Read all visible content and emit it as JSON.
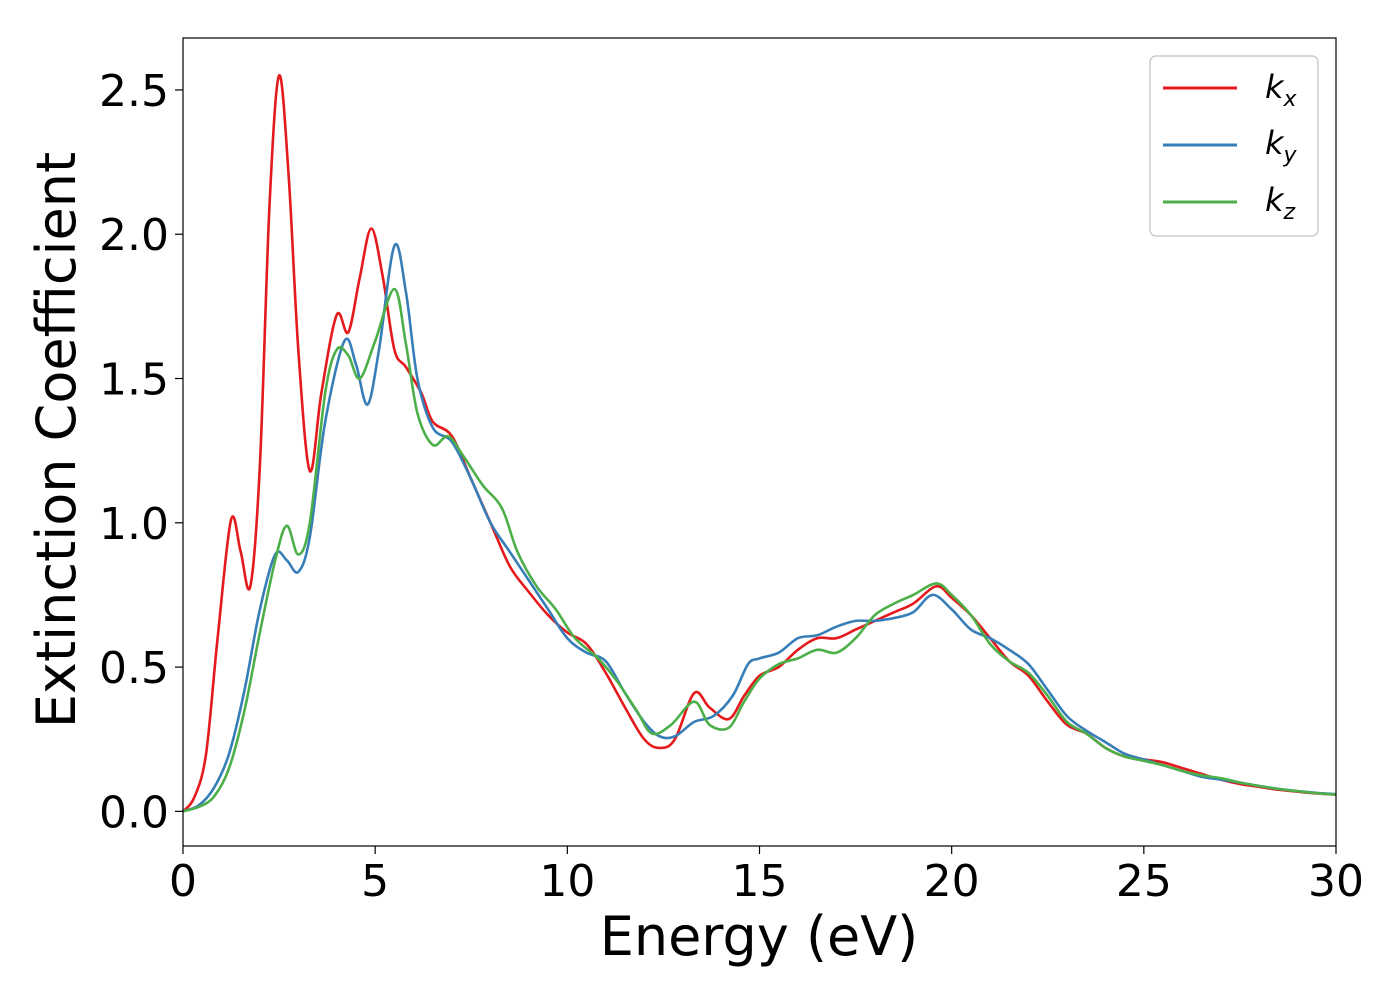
{
  "chart_data": {
    "type": "line",
    "xlabel": "Energy (eV)",
    "ylabel": "Extinction Coefficient",
    "xlim": [
      0,
      30
    ],
    "ylim": [
      -0.12,
      2.68
    ],
    "xticks": [
      "0",
      "5",
      "10",
      "15",
      "20",
      "25",
      "30"
    ],
    "yticks": [
      "0.0",
      "0.5",
      "1.0",
      "1.5",
      "2.0",
      "2.5"
    ],
    "grid": false,
    "legend_position": "top-right",
    "series": [
      {
        "name": "k",
        "subscript": "x",
        "color": "#e41a1c",
        "points": [
          [
            0,
            0.0
          ],
          [
            0.3,
            0.05
          ],
          [
            0.6,
            0.2
          ],
          [
            0.9,
            0.6
          ],
          [
            1.25,
            1.01
          ],
          [
            1.5,
            0.9
          ],
          [
            1.75,
            0.78
          ],
          [
            2.0,
            1.2
          ],
          [
            2.25,
            2.1
          ],
          [
            2.5,
            2.55
          ],
          [
            2.75,
            2.2
          ],
          [
            3.0,
            1.6
          ],
          [
            3.3,
            1.18
          ],
          [
            3.6,
            1.45
          ],
          [
            4.0,
            1.72
          ],
          [
            4.3,
            1.66
          ],
          [
            4.6,
            1.85
          ],
          [
            4.9,
            2.02
          ],
          [
            5.2,
            1.85
          ],
          [
            5.5,
            1.6
          ],
          [
            5.8,
            1.54
          ],
          [
            6.2,
            1.45
          ],
          [
            6.5,
            1.35
          ],
          [
            7.0,
            1.3
          ],
          [
            7.5,
            1.15
          ],
          [
            8.0,
            1.0
          ],
          [
            8.5,
            0.85
          ],
          [
            9.0,
            0.76
          ],
          [
            9.5,
            0.68
          ],
          [
            10.0,
            0.62
          ],
          [
            10.5,
            0.58
          ],
          [
            11.0,
            0.48
          ],
          [
            11.5,
            0.36
          ],
          [
            12.0,
            0.25
          ],
          [
            12.4,
            0.22
          ],
          [
            12.8,
            0.25
          ],
          [
            13.3,
            0.41
          ],
          [
            13.7,
            0.36
          ],
          [
            14.2,
            0.32
          ],
          [
            14.6,
            0.4
          ],
          [
            15.0,
            0.47
          ],
          [
            15.5,
            0.5
          ],
          [
            16.0,
            0.56
          ],
          [
            16.5,
            0.6
          ],
          [
            17.0,
            0.6
          ],
          [
            17.5,
            0.63
          ],
          [
            18.0,
            0.66
          ],
          [
            18.5,
            0.69
          ],
          [
            19.0,
            0.72
          ],
          [
            19.6,
            0.78
          ],
          [
            20.0,
            0.74
          ],
          [
            20.5,
            0.68
          ],
          [
            21.0,
            0.6
          ],
          [
            21.5,
            0.52
          ],
          [
            22.0,
            0.47
          ],
          [
            22.5,
            0.38
          ],
          [
            23.0,
            0.3
          ],
          [
            23.5,
            0.27
          ],
          [
            24.0,
            0.22
          ],
          [
            24.5,
            0.19
          ],
          [
            25.0,
            0.18
          ],
          [
            25.5,
            0.17
          ],
          [
            26.0,
            0.15
          ],
          [
            26.5,
            0.13
          ],
          [
            27.0,
            0.11
          ],
          [
            27.5,
            0.095
          ],
          [
            28.0,
            0.085
          ],
          [
            28.5,
            0.075
          ],
          [
            29.0,
            0.068
          ],
          [
            29.5,
            0.062
          ],
          [
            30.0,
            0.058
          ]
        ]
      },
      {
        "name": "k",
        "subscript": "y",
        "color": "#377eb8",
        "points": [
          [
            0,
            0.0
          ],
          [
            0.4,
            0.02
          ],
          [
            0.8,
            0.08
          ],
          [
            1.2,
            0.2
          ],
          [
            1.6,
            0.42
          ],
          [
            2.0,
            0.7
          ],
          [
            2.4,
            0.89
          ],
          [
            2.7,
            0.87
          ],
          [
            3.0,
            0.83
          ],
          [
            3.3,
            0.95
          ],
          [
            3.7,
            1.35
          ],
          [
            4.2,
            1.63
          ],
          [
            4.5,
            1.55
          ],
          [
            4.8,
            1.41
          ],
          [
            5.1,
            1.6
          ],
          [
            5.5,
            1.96
          ],
          [
            5.8,
            1.8
          ],
          [
            6.1,
            1.5
          ],
          [
            6.5,
            1.33
          ],
          [
            7.0,
            1.28
          ],
          [
            7.5,
            1.15
          ],
          [
            8.0,
            1.0
          ],
          [
            8.5,
            0.9
          ],
          [
            9.0,
            0.8
          ],
          [
            9.5,
            0.7
          ],
          [
            10.0,
            0.6
          ],
          [
            10.5,
            0.55
          ],
          [
            11.0,
            0.52
          ],
          [
            11.5,
            0.41
          ],
          [
            12.0,
            0.31
          ],
          [
            12.4,
            0.26
          ],
          [
            12.8,
            0.26
          ],
          [
            13.3,
            0.31
          ],
          [
            13.8,
            0.33
          ],
          [
            14.3,
            0.4
          ],
          [
            14.7,
            0.51
          ],
          [
            15.0,
            0.53
          ],
          [
            15.5,
            0.55
          ],
          [
            16.0,
            0.6
          ],
          [
            16.5,
            0.61
          ],
          [
            17.0,
            0.64
          ],
          [
            17.5,
            0.66
          ],
          [
            18.0,
            0.66
          ],
          [
            18.5,
            0.67
          ],
          [
            19.0,
            0.69
          ],
          [
            19.5,
            0.75
          ],
          [
            20.0,
            0.7
          ],
          [
            20.5,
            0.63
          ],
          [
            21.0,
            0.6
          ],
          [
            21.5,
            0.56
          ],
          [
            22.0,
            0.51
          ],
          [
            22.5,
            0.42
          ],
          [
            23.0,
            0.33
          ],
          [
            23.5,
            0.28
          ],
          [
            24.0,
            0.24
          ],
          [
            24.5,
            0.2
          ],
          [
            25.0,
            0.18
          ],
          [
            25.5,
            0.16
          ],
          [
            26.0,
            0.14
          ],
          [
            26.5,
            0.12
          ],
          [
            27.0,
            0.11
          ],
          [
            27.5,
            0.1
          ],
          [
            28.0,
            0.088
          ],
          [
            28.5,
            0.078
          ],
          [
            29.0,
            0.07
          ],
          [
            29.5,
            0.064
          ],
          [
            30.0,
            0.06
          ]
        ]
      },
      {
        "name": "k",
        "subscript": "z",
        "color": "#4daf4a",
        "points": [
          [
            0,
            0.0
          ],
          [
            0.4,
            0.015
          ],
          [
            0.8,
            0.05
          ],
          [
            1.2,
            0.15
          ],
          [
            1.6,
            0.35
          ],
          [
            2.0,
            0.62
          ],
          [
            2.4,
            0.87
          ],
          [
            2.7,
            0.99
          ],
          [
            3.0,
            0.89
          ],
          [
            3.3,
            1.0
          ],
          [
            3.7,
            1.45
          ],
          [
            4.0,
            1.6
          ],
          [
            4.3,
            1.58
          ],
          [
            4.6,
            1.5
          ],
          [
            5.0,
            1.63
          ],
          [
            5.5,
            1.81
          ],
          [
            5.8,
            1.62
          ],
          [
            6.1,
            1.38
          ],
          [
            6.5,
            1.27
          ],
          [
            6.9,
            1.3
          ],
          [
            7.3,
            1.23
          ],
          [
            7.8,
            1.13
          ],
          [
            8.3,
            1.05
          ],
          [
            8.7,
            0.9
          ],
          [
            9.2,
            0.78
          ],
          [
            9.7,
            0.7
          ],
          [
            10.2,
            0.6
          ],
          [
            10.8,
            0.53
          ],
          [
            11.3,
            0.45
          ],
          [
            11.8,
            0.35
          ],
          [
            12.2,
            0.27
          ],
          [
            12.7,
            0.3
          ],
          [
            13.3,
            0.38
          ],
          [
            13.7,
            0.3
          ],
          [
            14.2,
            0.29
          ],
          [
            14.6,
            0.38
          ],
          [
            15.0,
            0.46
          ],
          [
            15.5,
            0.51
          ],
          [
            16.0,
            0.53
          ],
          [
            16.5,
            0.56
          ],
          [
            17.0,
            0.55
          ],
          [
            17.5,
            0.6
          ],
          [
            18.0,
            0.68
          ],
          [
            18.5,
            0.72
          ],
          [
            19.0,
            0.75
          ],
          [
            19.6,
            0.79
          ],
          [
            20.0,
            0.75
          ],
          [
            20.5,
            0.68
          ],
          [
            21.0,
            0.58
          ],
          [
            21.5,
            0.52
          ],
          [
            22.0,
            0.48
          ],
          [
            22.5,
            0.4
          ],
          [
            23.0,
            0.31
          ],
          [
            23.5,
            0.27
          ],
          [
            24.0,
            0.22
          ],
          [
            24.5,
            0.19
          ],
          [
            25.0,
            0.175
          ],
          [
            25.5,
            0.16
          ],
          [
            26.0,
            0.14
          ],
          [
            26.5,
            0.125
          ],
          [
            27.0,
            0.115
          ],
          [
            27.5,
            0.1
          ],
          [
            28.0,
            0.088
          ],
          [
            28.5,
            0.078
          ],
          [
            29.0,
            0.07
          ],
          [
            29.5,
            0.063
          ],
          [
            30.0,
            0.058
          ]
        ]
      }
    ]
  }
}
